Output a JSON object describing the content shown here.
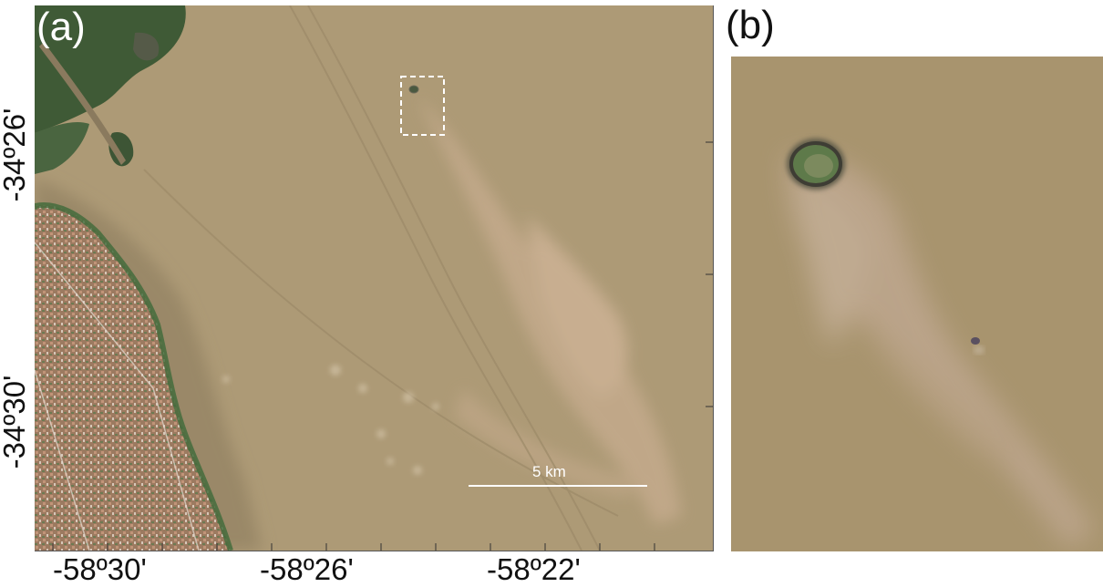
{
  "panel_a": {
    "label": "(a)",
    "x_ticks": [
      "-58º30'",
      "-58º26'",
      "-58º22'"
    ],
    "y_ticks": [
      "-34º26'",
      "-34º30'"
    ],
    "scale_bar": "5 km"
  },
  "panel_b": {
    "label": "(b)"
  },
  "colors": {
    "water": "#ad9a76",
    "plume": "#c4a98c",
    "land_vegetation": "#3f5a36",
    "urban": "#a07a5c"
  }
}
